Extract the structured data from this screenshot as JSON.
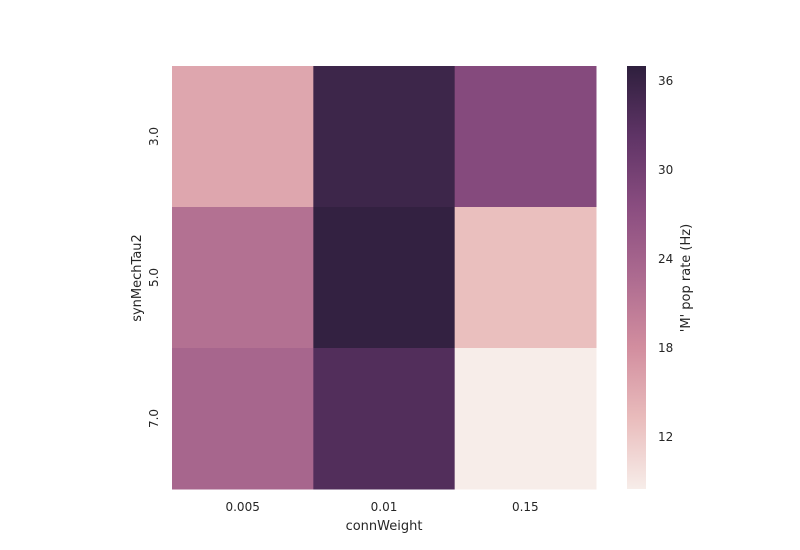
{
  "chart_data": {
    "type": "heatmap",
    "xlabel": "connWeight",
    "ylabel": "synMechTau2",
    "x_categories": [
      "0.005",
      "0.01",
      "0.15"
    ],
    "y_categories": [
      "3.0",
      "5.0",
      "7.0"
    ],
    "values": [
      [
        15.5,
        35.5,
        28.0
      ],
      [
        22.0,
        36.5,
        13.0
      ],
      [
        23.5,
        33.5,
        8.5
      ]
    ],
    "colorbar": {
      "label": "'M' pop rate (Hz)",
      "range": [
        8.5,
        37
      ],
      "ticks": [
        "12",
        "18",
        "24",
        "30",
        "36"
      ],
      "colors": [
        "#f7ede9",
        "#e9bcbc",
        "#d28e9f",
        "#ad6b90",
        "#8a4d80",
        "#5f3466",
        "#2e1f3d"
      ]
    }
  }
}
